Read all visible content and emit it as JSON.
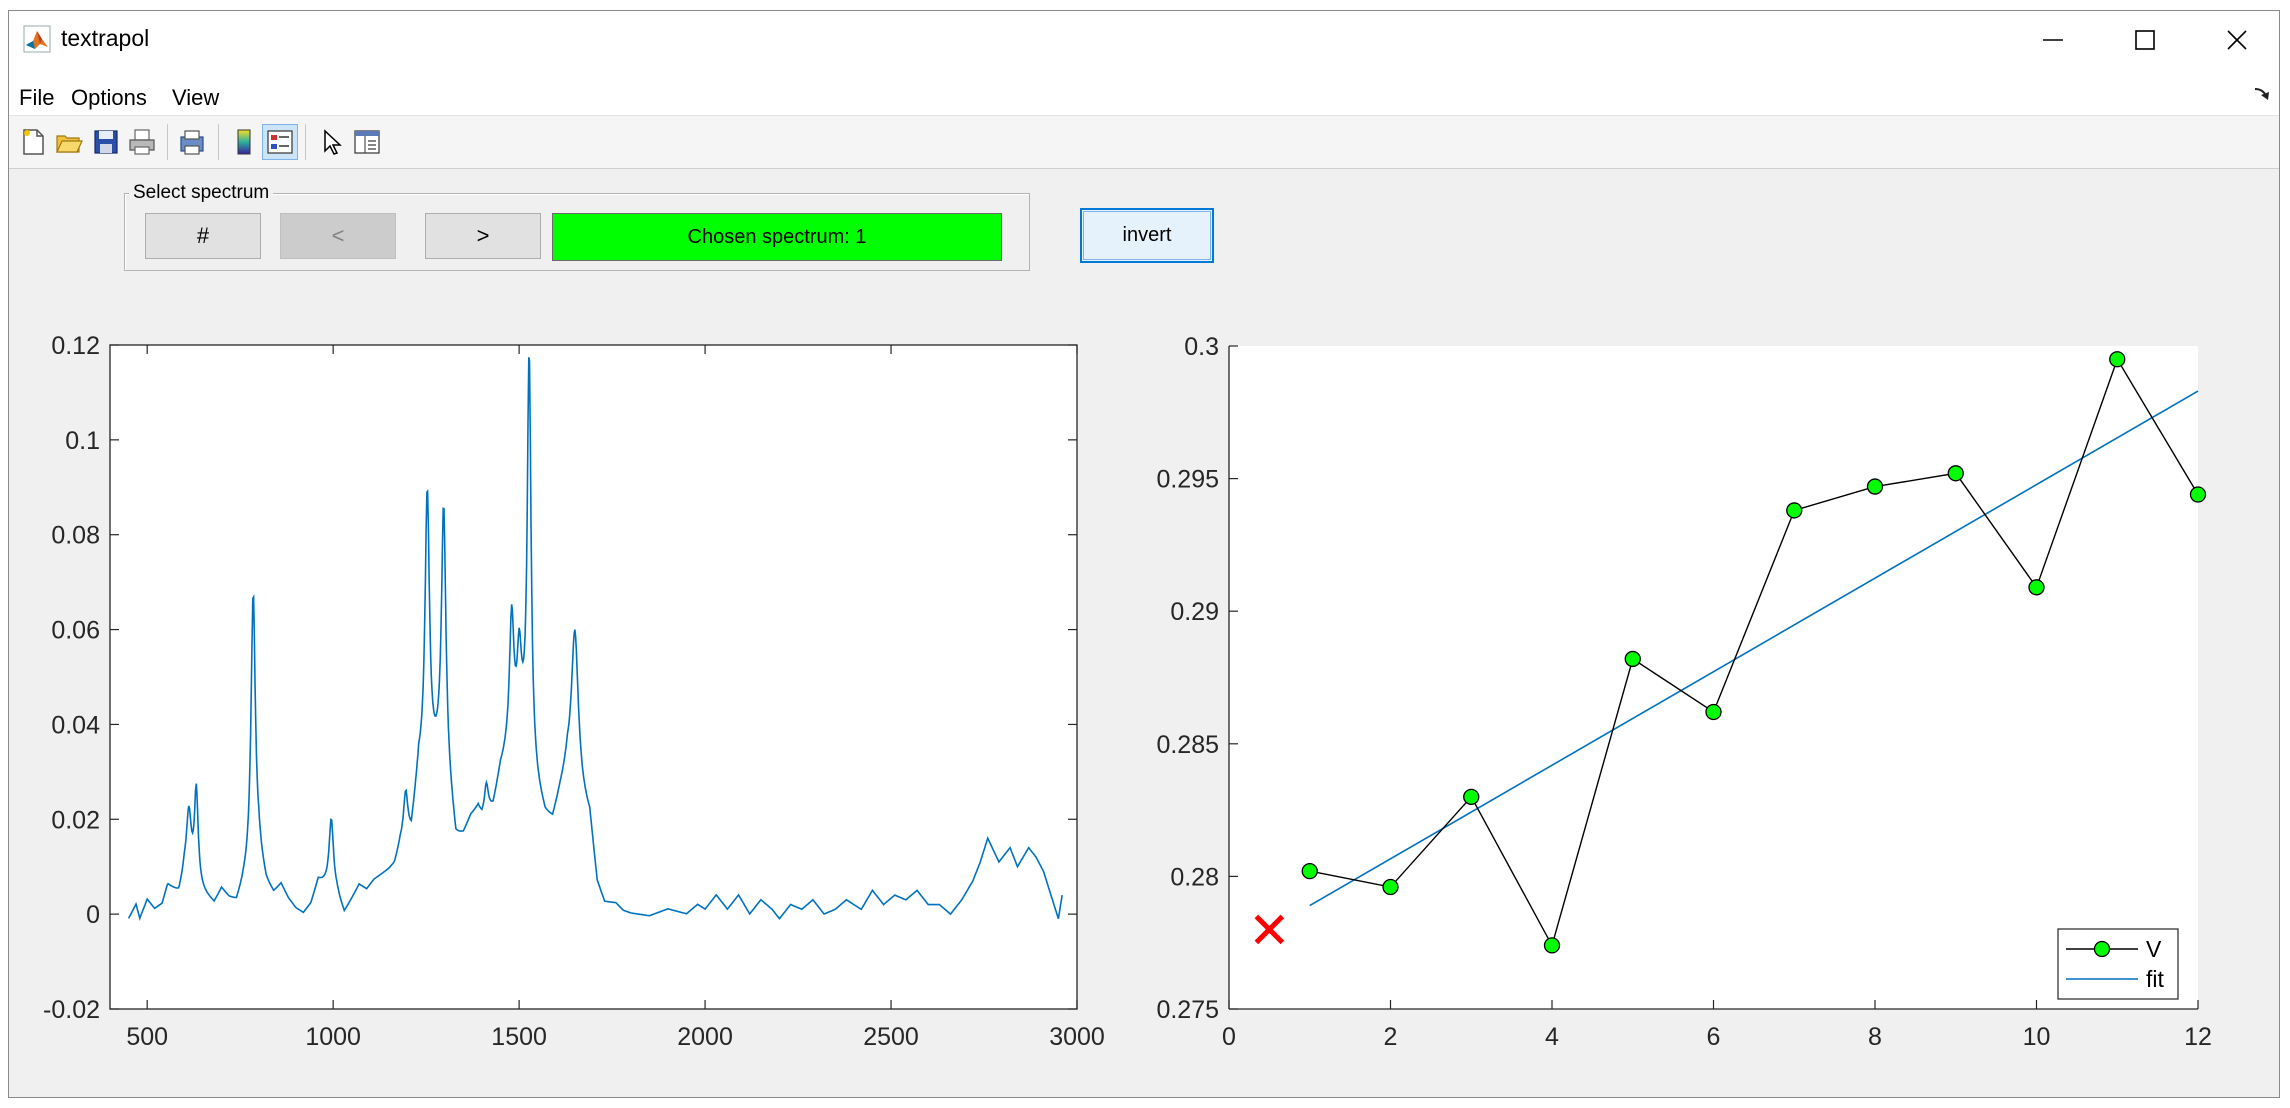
{
  "window": {
    "title": "textrapol",
    "controls": {
      "minimize": "minimize-icon",
      "maximize": "maximize-icon",
      "close": "close-icon"
    }
  },
  "menu": [
    "File",
    "Options",
    "View"
  ],
  "toolbar": [
    "new-figure-icon",
    "open-file-icon",
    "save-icon",
    "print-icon",
    "print-preview-icon",
    "colorbar-icon",
    "legend-icon",
    "pointer-icon",
    "property-inspector-icon"
  ],
  "panel": {
    "title": "Select spectrum",
    "buttons": {
      "select": "#",
      "prev": "<",
      "next": ">"
    },
    "chosen": "Chosen spectrum: 1",
    "chosen_color": "#00ff00"
  },
  "invert_label": "invert",
  "chart_data": [
    {
      "type": "line",
      "xlim": [
        400,
        3000
      ],
      "ylim": [
        -0.02,
        0.12
      ],
      "xticks": [
        500,
        1000,
        1500,
        2000,
        2500,
        3000
      ],
      "xtick_labels": [
        "500",
        "1000",
        "1500",
        "2000",
        "2500",
        "3000"
      ],
      "yticks": [
        -0.02,
        0,
        0.02,
        0.04,
        0.06,
        0.08,
        0.1,
        0.12
      ],
      "ytick_labels": [
        "-0.02",
        "0",
        "0.02",
        "0.04",
        "0.06",
        "0.08",
        "0.1",
        "0.12"
      ],
      "color": "#0072bd",
      "baseline_points": [
        [
          450,
          -0.001
        ],
        [
          470,
          0.002
        ],
        [
          480,
          -0.001
        ],
        [
          500,
          0.003
        ],
        [
          520,
          0.001
        ],
        [
          540,
          0.002
        ],
        [
          555,
          0.006
        ],
        [
          570,
          0.005
        ],
        [
          585,
          0.004
        ],
        [
          600,
          0.008
        ],
        [
          650,
          0.004
        ],
        [
          680,
          0.002
        ],
        [
          700,
          0.005
        ],
        [
          720,
          0.003
        ],
        [
          740,
          0.002
        ],
        [
          760,
          0.006
        ],
        [
          800,
          0.012
        ],
        [
          820,
          0.006
        ],
        [
          840,
          0.004
        ],
        [
          860,
          0.006
        ],
        [
          880,
          0.003
        ],
        [
          900,
          0.001
        ],
        [
          920,
          0
        ],
        [
          940,
          0.002
        ],
        [
          960,
          0.007
        ],
        [
          980,
          0.006
        ],
        [
          1010,
          0.004
        ],
        [
          1030,
          0
        ],
        [
          1050,
          0.003
        ],
        [
          1070,
          0.006
        ],
        [
          1090,
          0.005
        ],
        [
          1110,
          0.007
        ],
        [
          1130,
          0.008
        ],
        [
          1150,
          0.009
        ],
        [
          1165,
          0.01
        ],
        [
          1180,
          0.014
        ],
        [
          1210,
          0.016
        ],
        [
          1230,
          0.03
        ],
        [
          1300,
          0.032
        ],
        [
          1330,
          0.015
        ],
        [
          1350,
          0.016
        ],
        [
          1370,
          0.02
        ],
        [
          1390,
          0.022
        ],
        [
          1400,
          0.02
        ],
        [
          1430,
          0.022
        ],
        [
          1450,
          0.03
        ],
        [
          1505,
          0.04
        ],
        [
          1550,
          0.025
        ],
        [
          1570,
          0.02
        ],
        [
          1590,
          0.019
        ],
        [
          1610,
          0.025
        ],
        [
          1630,
          0.03
        ],
        [
          1690,
          0.02
        ],
        [
          1710,
          0.006
        ],
        [
          1730,
          0.002
        ],
        [
          1760,
          0.002
        ],
        [
          1780,
          0.0005
        ],
        [
          1800,
          0
        ],
        [
          1850,
          -0.0005
        ],
        [
          1900,
          0.001
        ],
        [
          1950,
          0
        ],
        [
          1980,
          0.002
        ],
        [
          2000,
          0.001
        ],
        [
          2030,
          0.004
        ],
        [
          2060,
          0.001
        ],
        [
          2090,
          0.004
        ],
        [
          2120,
          0
        ],
        [
          2150,
          0.003
        ],
        [
          2180,
          0.001
        ],
        [
          2200,
          -0.001
        ],
        [
          2230,
          0.002
        ],
        [
          2260,
          0.001
        ],
        [
          2290,
          0.003
        ],
        [
          2320,
          0
        ],
        [
          2350,
          0.001
        ],
        [
          2380,
          0.003
        ],
        [
          2420,
          0.001
        ],
        [
          2450,
          0.005
        ],
        [
          2480,
          0.002
        ],
        [
          2510,
          0.004
        ],
        [
          2540,
          0.003
        ],
        [
          2570,
          0.005
        ],
        [
          2600,
          0.002
        ],
        [
          2630,
          0.002
        ],
        [
          2660,
          0
        ],
        [
          2690,
          0.003
        ],
        [
          2720,
          0.007
        ],
        [
          2740,
          0.011
        ],
        [
          2760,
          0.016
        ],
        [
          2790,
          0.011
        ],
        [
          2820,
          0.014
        ],
        [
          2840,
          0.01
        ],
        [
          2870,
          0.014
        ],
        [
          2890,
          0.012
        ],
        [
          2910,
          0.009
        ],
        [
          2930,
          0.004
        ],
        [
          2950,
          -0.001
        ],
        [
          2960,
          0.004
        ]
      ],
      "peaks": [
        {
          "x": 612,
          "h": 0.014,
          "w": 8
        },
        {
          "x": 632,
          "h": 0.02,
          "w": 6
        },
        {
          "x": 785,
          "h": 0.058,
          "w": 7
        },
        {
          "x": 995,
          "h": 0.015,
          "w": 7
        },
        {
          "x": 1195,
          "h": 0.01,
          "w": 7
        },
        {
          "x": 1253,
          "h": 0.058,
          "w": 7
        },
        {
          "x": 1297,
          "h": 0.053,
          "w": 7
        },
        {
          "x": 1412,
          "h": 0.006,
          "w": 6
        },
        {
          "x": 1480,
          "h": 0.027,
          "w": 7
        },
        {
          "x": 1500,
          "h": 0.014,
          "w": 6
        },
        {
          "x": 1527,
          "h": 0.085,
          "w": 6
        },
        {
          "x": 1650,
          "h": 0.033,
          "w": 11
        }
      ]
    },
    {
      "type": "line",
      "xlim": [
        0,
        12
      ],
      "ylim": [
        0.275,
        0.3
      ],
      "xticks": [
        0,
        2,
        4,
        6,
        8,
        10,
        12
      ],
      "xtick_labels": [
        "0",
        "2",
        "4",
        "6",
        "8",
        "10",
        "12"
      ],
      "yticks": [
        0.275,
        0.28,
        0.285,
        0.29,
        0.295,
        0.3
      ],
      "ytick_labels": [
        "0.275",
        "0.28",
        "0.285",
        "0.29",
        "0.295",
        "0.3"
      ],
      "series": [
        {
          "name": "V",
          "color": "#000000",
          "marker_color": "#00ff00",
          "x": [
            1,
            2,
            3,
            4,
            5,
            6,
            7,
            8,
            9,
            10,
            11,
            12
          ],
          "y": [
            0.2802,
            0.2796,
            0.283,
            0.2774,
            0.2882,
            0.2862,
            0.2938,
            0.2947,
            0.2952,
            0.2909,
            0.2995,
            0.2944
          ]
        },
        {
          "name": "fit",
          "color": "#0072bd",
          "x": [
            1,
            12
          ],
          "y": [
            0.2789,
            0.2983
          ]
        }
      ],
      "extrapolated_point": {
        "x": 0.5,
        "y": 0.278,
        "marker": "x",
        "color": "#ff0000"
      },
      "legend_position": "bottom-right"
    }
  ]
}
